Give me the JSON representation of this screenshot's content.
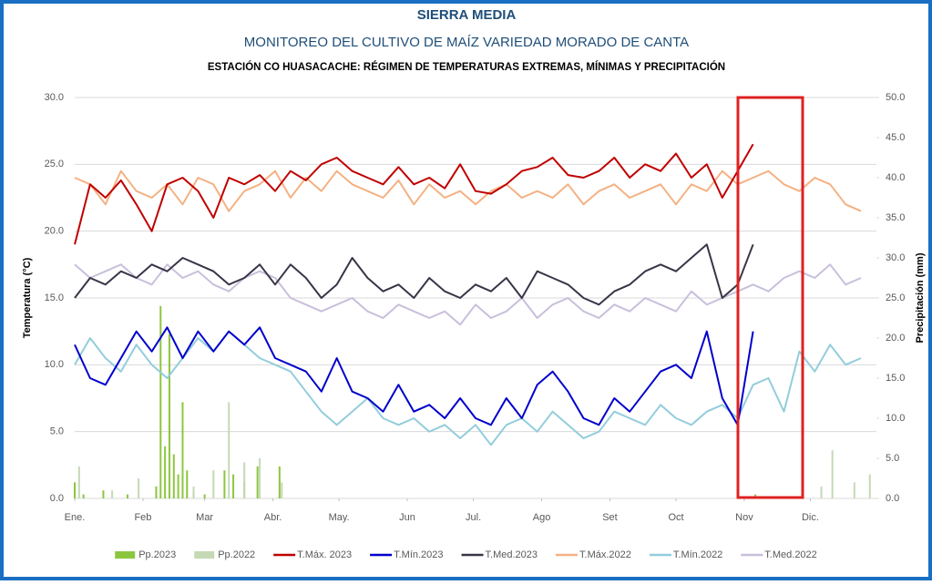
{
  "chart_data": {
    "type": "line",
    "title": "SIERRA MEDIA",
    "subtitle": "MONITOREO DEL CULTIVO DE MAÍZ VARIEDAD MORADO DE CANTA",
    "caption": "ESTACIÓN CO HUASACACHE: RÉGIMEN DE TEMPERATURAS EXTREMAS, MÍNIMAS Y PRECIPITACIÓN",
    "ylabel": "Temperatura (°C)",
    "y2label": "Precipitación (mm)",
    "xlim": [
      1,
      365
    ],
    "xticks": [
      {
        "value": 1,
        "label": "Ene."
      },
      {
        "value": 32,
        "label": "Feb"
      },
      {
        "value": 60,
        "label": "Mar"
      },
      {
        "value": 91,
        "label": "Abr."
      },
      {
        "value": 121,
        "label": "May."
      },
      {
        "value": 152,
        "label": "Jun"
      },
      {
        "value": 182,
        "label": "Jul."
      },
      {
        "value": 213,
        "label": "Ago"
      },
      {
        "value": 244,
        "label": "Set"
      },
      {
        "value": 274,
        "label": "Oct"
      },
      {
        "value": 305,
        "label": "Nov"
      },
      {
        "value": 335,
        "label": "Dic."
      }
    ],
    "ylim": [
      0,
      30
    ],
    "yticks": [
      {
        "value": 0,
        "label": "0.0"
      },
      {
        "value": 5,
        "label": "5.0"
      },
      {
        "value": 10,
        "label": "10.0"
      },
      {
        "value": 15,
        "label": "15.0"
      },
      {
        "value": 20,
        "label": "20.0"
      },
      {
        "value": 25,
        "label": "25.0"
      },
      {
        "value": 30,
        "label": "30.0"
      }
    ],
    "y2lim": [
      0,
      50
    ],
    "y2ticks": [
      {
        "value": 0,
        "label": "0.0"
      },
      {
        "value": 5,
        "label": "5.0"
      },
      {
        "value": 10,
        "label": "10.0"
      },
      {
        "value": 15,
        "label": "15.0"
      },
      {
        "value": 20,
        "label": "20.0"
      },
      {
        "value": 25,
        "label": "25.0"
      },
      {
        "value": 30,
        "label": "30.0"
      },
      {
        "value": 35,
        "label": "35.0"
      },
      {
        "value": 40,
        "label": "40.0"
      },
      {
        "value": 45,
        "label": "45.0"
      },
      {
        "value": 50,
        "label": "50.0"
      }
    ],
    "grid": true,
    "legend": "bottom",
    "series": [
      {
        "name": "Pp.2023",
        "type": "bar",
        "axis": "y2",
        "color": "#8cc63f",
        "x": [
          1,
          5,
          14,
          25,
          38,
          40,
          42,
          44,
          46,
          48,
          50,
          52,
          55,
          60,
          69,
          73,
          78,
          84,
          94,
          310
        ],
        "values": [
          2.0,
          0.5,
          1.0,
          0.5,
          1.5,
          24.0,
          6.5,
          20.5,
          5.5,
          3.0,
          12.0,
          3.5,
          1.0,
          0.5,
          3.5,
          3.0,
          2.0,
          4.0,
          4.0,
          0.5
        ]
      },
      {
        "name": "Pp.2022",
        "type": "bar",
        "axis": "y2",
        "color": "#c5d9b5",
        "x": [
          3,
          18,
          30,
          55,
          64,
          71,
          78,
          85,
          95,
          340,
          345,
          355,
          362
        ],
        "values": [
          4.0,
          1.0,
          2.5,
          1.5,
          3.5,
          12.0,
          4.5,
          5.0,
          2.0,
          1.5,
          6.0,
          2.0,
          3.0
        ]
      },
      {
        "name": "T.Máx. 2023",
        "type": "line",
        "color": "#c00000",
        "x": [
          1,
          8,
          15,
          22,
          29,
          36,
          43,
          50,
          57,
          64,
          71,
          78,
          85,
          92,
          99,
          106,
          113,
          120,
          127,
          134,
          141,
          148,
          155,
          162,
          169,
          176,
          183,
          190,
          197,
          204,
          211,
          218,
          225,
          232,
          239,
          246,
          253,
          260,
          267,
          274,
          281,
          288,
          295,
          302,
          309,
          316,
          323,
          330,
          337,
          344,
          351,
          358
        ],
        "values": [
          19.0,
          23.5,
          22.5,
          23.8,
          22.0,
          20.0,
          23.5,
          24.0,
          23.0,
          21.0,
          24.0,
          23.5,
          24.2,
          23.0,
          24.5,
          23.8,
          25.0,
          25.5,
          24.5,
          24.0,
          23.5,
          24.8,
          23.5,
          24.0,
          23.2,
          25.0,
          23.0,
          22.8,
          23.5,
          24.5,
          24.8,
          25.5,
          24.2,
          24.0,
          24.5,
          25.5,
          24.0,
          25.0,
          24.5,
          25.8,
          24.0,
          25.0,
          22.5,
          24.5,
          26.5,
          null,
          null,
          null,
          null,
          null,
          null,
          null
        ]
      },
      {
        "name": "T.Mín.2023",
        "type": "line",
        "color": "#0000cc",
        "x": [
          1,
          8,
          15,
          22,
          29,
          36,
          43,
          50,
          57,
          64,
          71,
          78,
          85,
          92,
          99,
          106,
          113,
          120,
          127,
          134,
          141,
          148,
          155,
          162,
          169,
          176,
          183,
          190,
          197,
          204,
          211,
          218,
          225,
          232,
          239,
          246,
          253,
          260,
          267,
          274,
          281,
          288,
          295,
          302,
          309,
          316,
          323,
          330,
          337,
          344,
          351,
          358
        ],
        "values": [
          11.5,
          9.0,
          8.5,
          10.5,
          12.5,
          11.0,
          12.8,
          10.5,
          12.5,
          11.0,
          12.5,
          11.5,
          12.8,
          10.5,
          10.0,
          9.5,
          8.0,
          10.5,
          8.0,
          7.5,
          6.5,
          8.5,
          6.5,
          7.0,
          6.0,
          7.5,
          6.0,
          5.5,
          7.5,
          6.0,
          8.5,
          9.5,
          8.0,
          6.0,
          5.5,
          7.5,
          6.5,
          8.0,
          9.5,
          10.0,
          9.0,
          12.5,
          7.5,
          5.5,
          12.5,
          null,
          null,
          null,
          null,
          null,
          null,
          null
        ]
      },
      {
        "name": "T.Med.2023",
        "type": "line",
        "color": "#3a3447",
        "x": [
          1,
          8,
          15,
          22,
          29,
          36,
          43,
          50,
          57,
          64,
          71,
          78,
          85,
          92,
          99,
          106,
          113,
          120,
          127,
          134,
          141,
          148,
          155,
          162,
          169,
          176,
          183,
          190,
          197,
          204,
          211,
          218,
          225,
          232,
          239,
          246,
          253,
          260,
          267,
          274,
          281,
          288,
          295,
          302,
          309,
          316,
          323,
          330,
          337,
          344,
          351,
          358
        ],
        "values": [
          15.0,
          16.5,
          16.0,
          17.0,
          16.5,
          17.5,
          17.0,
          18.0,
          17.5,
          17.0,
          16.0,
          16.5,
          17.5,
          16.0,
          17.5,
          16.5,
          15.0,
          16.0,
          18.0,
          16.5,
          15.5,
          16.0,
          15.0,
          16.5,
          15.5,
          15.0,
          16.0,
          15.5,
          16.5,
          15.0,
          17.0,
          16.5,
          16.0,
          15.0,
          14.5,
          15.5,
          16.0,
          17.0,
          17.5,
          17.0,
          18.0,
          19.0,
          15.0,
          16.0,
          19.0,
          null,
          null,
          null,
          null,
          null,
          null,
          null
        ]
      },
      {
        "name": "T.Máx.2022",
        "type": "line",
        "color": "#f4b183",
        "x": [
          1,
          8,
          15,
          22,
          29,
          36,
          43,
          50,
          57,
          64,
          71,
          78,
          85,
          92,
          99,
          106,
          113,
          120,
          127,
          134,
          141,
          148,
          155,
          162,
          169,
          176,
          183,
          190,
          197,
          204,
          211,
          218,
          225,
          232,
          239,
          246,
          253,
          260,
          267,
          274,
          281,
          288,
          295,
          302,
          309,
          316,
          323,
          330,
          337,
          344,
          351,
          358
        ],
        "values": [
          24.0,
          23.5,
          22.0,
          24.5,
          23.0,
          22.5,
          23.5,
          22.0,
          24.0,
          23.5,
          21.5,
          23.0,
          23.5,
          24.5,
          22.5,
          24.0,
          23.0,
          24.5,
          23.5,
          23.0,
          22.5,
          23.8,
          22.0,
          23.5,
          22.5,
          23.0,
          22.0,
          23.0,
          23.5,
          22.5,
          23.0,
          22.5,
          23.5,
          22.0,
          23.0,
          23.5,
          22.5,
          23.0,
          23.5,
          22.0,
          23.5,
          23.0,
          24.5,
          23.5,
          24.0,
          24.5,
          23.5,
          23.0,
          24.0,
          23.5,
          22.0,
          21.5
        ]
      },
      {
        "name": "T.Mín.2022",
        "type": "line",
        "color": "#92cddc",
        "x": [
          1,
          8,
          15,
          22,
          29,
          36,
          43,
          50,
          57,
          64,
          71,
          78,
          85,
          92,
          99,
          106,
          113,
          120,
          127,
          134,
          141,
          148,
          155,
          162,
          169,
          176,
          183,
          190,
          197,
          204,
          211,
          218,
          225,
          232,
          239,
          246,
          253,
          260,
          267,
          274,
          281,
          288,
          295,
          302,
          309,
          316,
          323,
          330,
          337,
          344,
          351,
          358
        ],
        "values": [
          10.0,
          12.0,
          10.5,
          9.5,
          11.5,
          10.0,
          9.0,
          10.5,
          12.0,
          11.0,
          12.5,
          11.5,
          10.5,
          10.0,
          9.5,
          8.0,
          6.5,
          5.5,
          6.5,
          7.5,
          6.0,
          5.5,
          6.0,
          5.0,
          5.5,
          4.5,
          5.5,
          4.0,
          5.5,
          6.0,
          5.0,
          6.5,
          5.5,
          4.5,
          5.0,
          6.5,
          6.0,
          5.5,
          7.0,
          6.0,
          5.5,
          6.5,
          7.0,
          6.0,
          8.5,
          9.0,
          6.5,
          11.0,
          9.5,
          11.5,
          10.0,
          10.5
        ]
      },
      {
        "name": "T.Med.2022",
        "type": "line",
        "color": "#c9bfdc",
        "x": [
          1,
          8,
          15,
          22,
          29,
          36,
          43,
          50,
          57,
          64,
          71,
          78,
          85,
          92,
          99,
          106,
          113,
          120,
          127,
          134,
          141,
          148,
          155,
          162,
          169,
          176,
          183,
          190,
          197,
          204,
          211,
          218,
          225,
          232,
          239,
          246,
          253,
          260,
          267,
          274,
          281,
          288,
          295,
          302,
          309,
          316,
          323,
          330,
          337,
          344,
          351,
          358
        ],
        "values": [
          17.5,
          16.5,
          17.0,
          17.5,
          16.5,
          16.0,
          17.5,
          16.5,
          17.0,
          16.0,
          15.5,
          16.5,
          17.0,
          16.5,
          15.0,
          14.5,
          14.0,
          14.5,
          15.0,
          14.0,
          13.5,
          14.5,
          14.0,
          13.5,
          14.0,
          13.0,
          14.5,
          13.5,
          14.0,
          15.0,
          13.5,
          14.5,
          15.0,
          14.0,
          13.5,
          14.5,
          14.0,
          15.0,
          14.5,
          14.0,
          15.5,
          14.5,
          15.0,
          15.5,
          16.0,
          15.5,
          16.5,
          17.0,
          16.5,
          17.5,
          16.0,
          16.5
        ]
      }
    ]
  }
}
